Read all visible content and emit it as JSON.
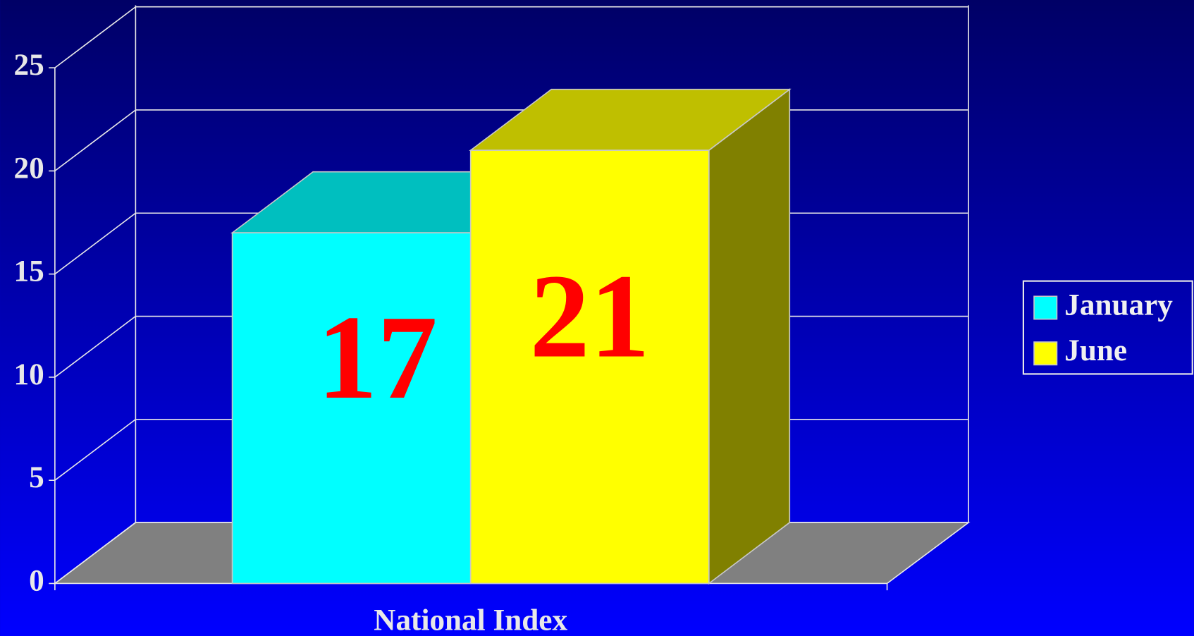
{
  "chart_data": {
    "type": "bar3d",
    "categories": [
      "National Index"
    ],
    "series": [
      {
        "name": "January",
        "color": "#00ffff",
        "values": [
          17
        ]
      },
      {
        "name": "June",
        "color": "#ffff00",
        "values": [
          21
        ]
      }
    ],
    "ylim": [
      0,
      25
    ],
    "yticks": [
      0,
      5,
      10,
      15,
      20,
      25
    ],
    "grid": true,
    "legend": "right"
  }
}
